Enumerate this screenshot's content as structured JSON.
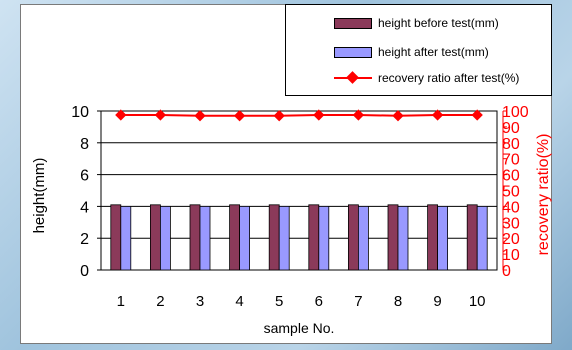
{
  "legend": {
    "items": [
      {
        "label": "height before test(mm)",
        "color": "#8b3a5a"
      },
      {
        "label": "height after test(mm)",
        "color": "#9999ff"
      },
      {
        "label": "recovery ratio after test(%)",
        "color": "#ff0000"
      }
    ]
  },
  "chart_data": {
    "type": "bar",
    "xlabel": "sample No.",
    "ylabel": "height(mm)",
    "y2label": "recovery ratio(%)",
    "categories": [
      "1",
      "2",
      "3",
      "4",
      "5",
      "6",
      "7",
      "8",
      "9",
      "10"
    ],
    "ylim": [
      0,
      10
    ],
    "yticks": [
      0,
      2,
      4,
      6,
      8,
      10
    ],
    "y2lim": [
      0,
      100
    ],
    "y2ticks": [
      0,
      10,
      20,
      30,
      40,
      50,
      60,
      70,
      80,
      90,
      100
    ],
    "grid": true,
    "legend_position": "top-right",
    "series": [
      {
        "name": "height before test(mm)",
        "type": "bar",
        "axis": "left",
        "color": "#8b3a5a",
        "values": [
          4.1,
          4.1,
          4.1,
          4.1,
          4.1,
          4.1,
          4.1,
          4.1,
          4.1,
          4.1
        ]
      },
      {
        "name": "height after test(mm)",
        "type": "bar",
        "axis": "left",
        "color": "#9999ff",
        "values": [
          4.0,
          4.0,
          4.0,
          4.0,
          4.0,
          4.0,
          4.0,
          4.0,
          4.0,
          4.0
        ]
      },
      {
        "name": "recovery ratio after test(%)",
        "type": "line",
        "axis": "right",
        "color": "#ff0000",
        "values": [
          97.5,
          97.5,
          97,
          97,
          97,
          97.5,
          97.5,
          97,
          97.5,
          97.5
        ]
      }
    ]
  }
}
